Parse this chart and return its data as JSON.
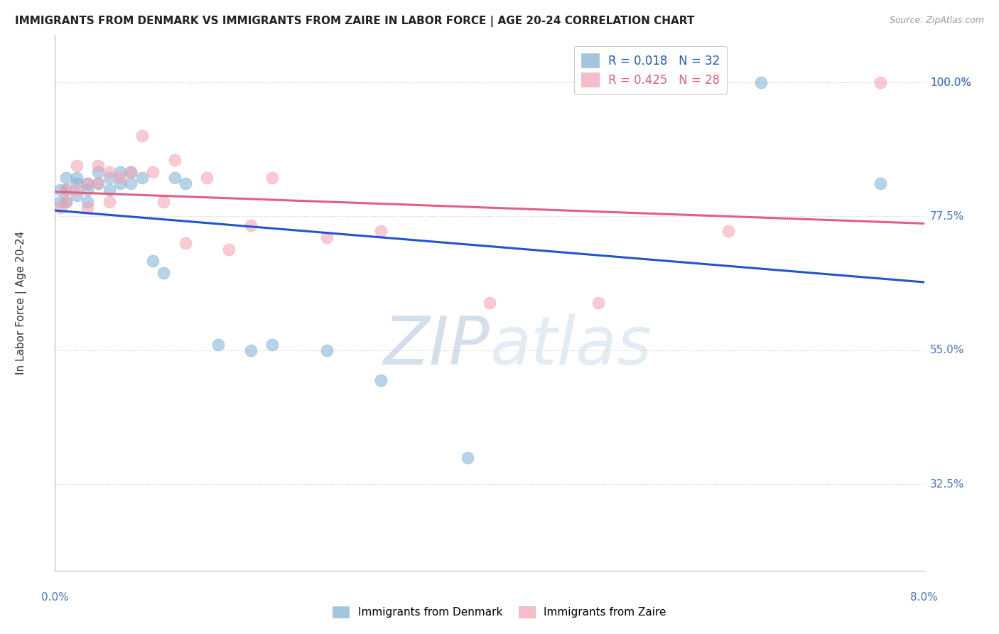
{
  "title": "IMMIGRANTS FROM DENMARK VS IMMIGRANTS FROM ZAIRE IN LABOR FORCE | AGE 20-24 CORRELATION CHART",
  "source": "Source: ZipAtlas.com",
  "ylabel": "In Labor Force | Age 20-24",
  "ytick_labels": [
    "100.0%",
    "77.5%",
    "55.0%",
    "32.5%"
  ],
  "ytick_values": [
    1.0,
    0.775,
    0.55,
    0.325
  ],
  "xmin": 0.0,
  "xmax": 0.08,
  "ymin": 0.18,
  "ymax": 1.08,
  "R_denmark": 0.018,
  "N_denmark": 32,
  "R_zaire": 0.425,
  "N_zaire": 28,
  "denmark_color": "#7bafd4",
  "zaire_color": "#f4a0b0",
  "denmark_line_color": "#2255cc",
  "zaire_line_color": "#e06080",
  "denmark_points_x": [
    0.0005,
    0.0005,
    0.001,
    0.001,
    0.001,
    0.002,
    0.002,
    0.002,
    0.003,
    0.003,
    0.003,
    0.004,
    0.004,
    0.005,
    0.005,
    0.006,
    0.006,
    0.007,
    0.007,
    0.008,
    0.009,
    0.01,
    0.011,
    0.012,
    0.015,
    0.018,
    0.02,
    0.025,
    0.03,
    0.038,
    0.065,
    0.076
  ],
  "denmark_points_y": [
    0.82,
    0.8,
    0.84,
    0.82,
    0.8,
    0.84,
    0.83,
    0.81,
    0.83,
    0.82,
    0.8,
    0.85,
    0.83,
    0.84,
    0.82,
    0.85,
    0.83,
    0.85,
    0.83,
    0.84,
    0.7,
    0.68,
    0.84,
    0.83,
    0.56,
    0.55,
    0.56,
    0.55,
    0.5,
    0.37,
    1.0,
    0.83
  ],
  "zaire_points_x": [
    0.0005,
    0.001,
    0.001,
    0.002,
    0.002,
    0.003,
    0.003,
    0.004,
    0.004,
    0.005,
    0.005,
    0.006,
    0.007,
    0.008,
    0.009,
    0.01,
    0.011,
    0.012,
    0.014,
    0.016,
    0.018,
    0.02,
    0.025,
    0.03,
    0.04,
    0.05,
    0.062,
    0.076
  ],
  "zaire_points_y": [
    0.79,
    0.82,
    0.8,
    0.86,
    0.82,
    0.83,
    0.79,
    0.86,
    0.83,
    0.85,
    0.8,
    0.84,
    0.85,
    0.91,
    0.85,
    0.8,
    0.87,
    0.73,
    0.84,
    0.72,
    0.76,
    0.84,
    0.74,
    0.75,
    0.63,
    0.63,
    0.75,
    1.0
  ],
  "background_color": "#ffffff",
  "grid_color": "#cccccc",
  "watermark_color": "#ccd8ec"
}
